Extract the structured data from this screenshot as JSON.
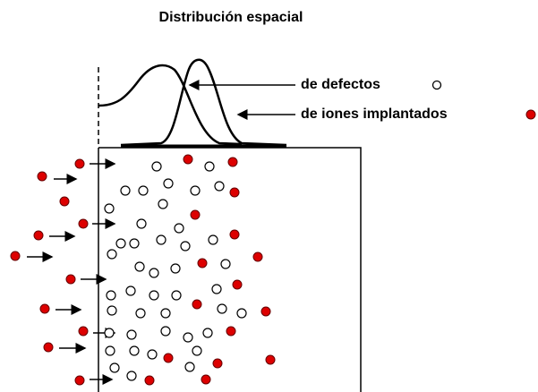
{
  "title": "Distribución espacial",
  "labels": {
    "defects": "de defectos",
    "implanted": "de iones implantados"
  }
}
